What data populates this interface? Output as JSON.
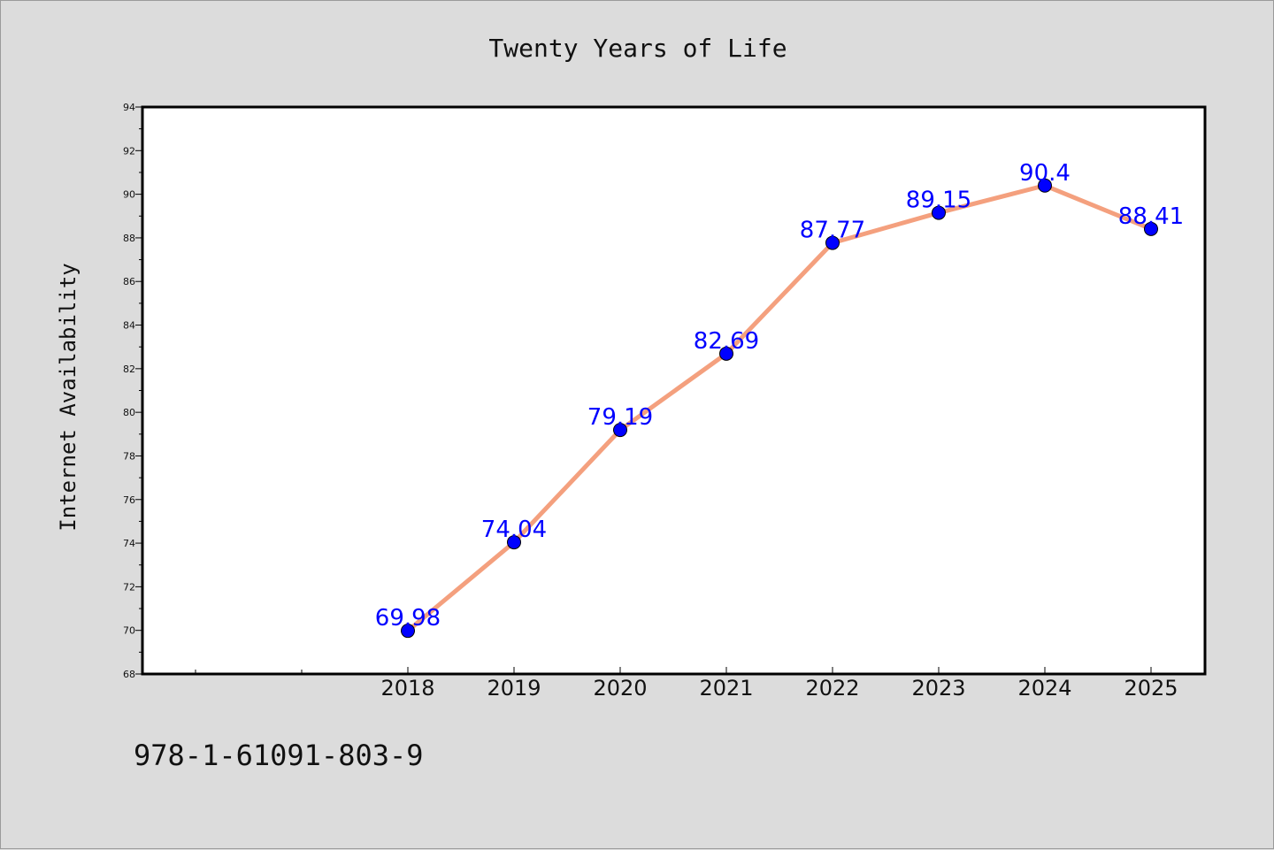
{
  "chart_data": {
    "type": "line",
    "title": "Twenty Years of Life",
    "xlabel": "",
    "ylabel": "Internet Availability",
    "x": [
      "2018",
      "2019",
      "2020",
      "2021",
      "2022",
      "2023",
      "2024",
      "2025"
    ],
    "series": [
      {
        "values": [
          69.98,
          74.04,
          79.19,
          82.69,
          87.77,
          89.15,
          90.4,
          88.41
        ],
        "labels": [
          "69.98",
          "74.04",
          "79.19",
          "82.69",
          "87.77",
          "89.15",
          "90.4",
          "88.41"
        ],
        "color": "#f4a07e",
        "marker_color": "#0000ff"
      }
    ],
    "ylim": [
      68,
      94
    ],
    "yticks": [
      "68",
      "70",
      "72",
      "74",
      "76",
      "78",
      "80",
      "82",
      "84",
      "86",
      "88",
      "90",
      "92",
      "94"
    ],
    "grid": false,
    "legend": "none",
    "data_label_color": "#0000ff"
  },
  "footer": {
    "isbn": "978-1-61091-803-9"
  },
  "colors": {
    "background": "#dcdcdc",
    "plot_background": "#ffffff",
    "axis": "#000000"
  }
}
